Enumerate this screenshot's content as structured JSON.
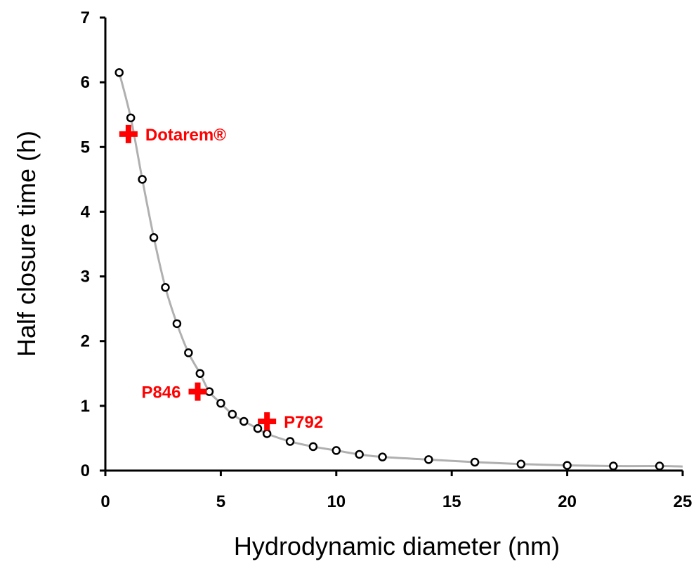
{
  "chart_data": {
    "type": "scatter",
    "xlabel": "Hydrodynamic diameter (nm)",
    "ylabel": "Half closure time (h)",
    "xlim": [
      0,
      25
    ],
    "ylim": [
      0,
      7
    ],
    "xticks": [
      0,
      5,
      10,
      15,
      20,
      25
    ],
    "yticks": [
      0,
      1,
      2,
      3,
      4,
      5,
      6,
      7
    ],
    "grid": false,
    "curve_color": "#b0b0b0",
    "marker_color": "#000000",
    "highlight_color": "#ff0000",
    "series": [
      {
        "marker": "open-circle",
        "line": "smooth",
        "x": [
          0.6,
          1.1,
          1.6,
          2.1,
          2.6,
          3.1,
          3.6,
          4.1,
          4.5,
          5.0,
          5.5,
          6.0,
          6.6,
          7.0,
          8.0,
          9.0,
          10.0,
          11.0,
          12.0,
          14.0,
          16.0,
          18.0,
          20.0,
          22.0,
          24.0
        ],
        "y": [
          6.15,
          5.45,
          4.5,
          3.6,
          2.83,
          2.27,
          1.82,
          1.5,
          1.22,
          1.04,
          0.87,
          0.76,
          0.65,
          0.57,
          0.45,
          0.37,
          0.31,
          0.25,
          0.21,
          0.17,
          0.13,
          0.1,
          0.08,
          0.07,
          0.07
        ]
      }
    ],
    "highlights": [
      {
        "label": "Dotarem®",
        "x": 1.0,
        "y": 5.2,
        "label_side": "right"
      },
      {
        "label": "P846",
        "x": 4.0,
        "y": 1.22,
        "label_side": "left"
      },
      {
        "label": "P792",
        "x": 7.0,
        "y": 0.76,
        "label_side": "right"
      }
    ]
  }
}
